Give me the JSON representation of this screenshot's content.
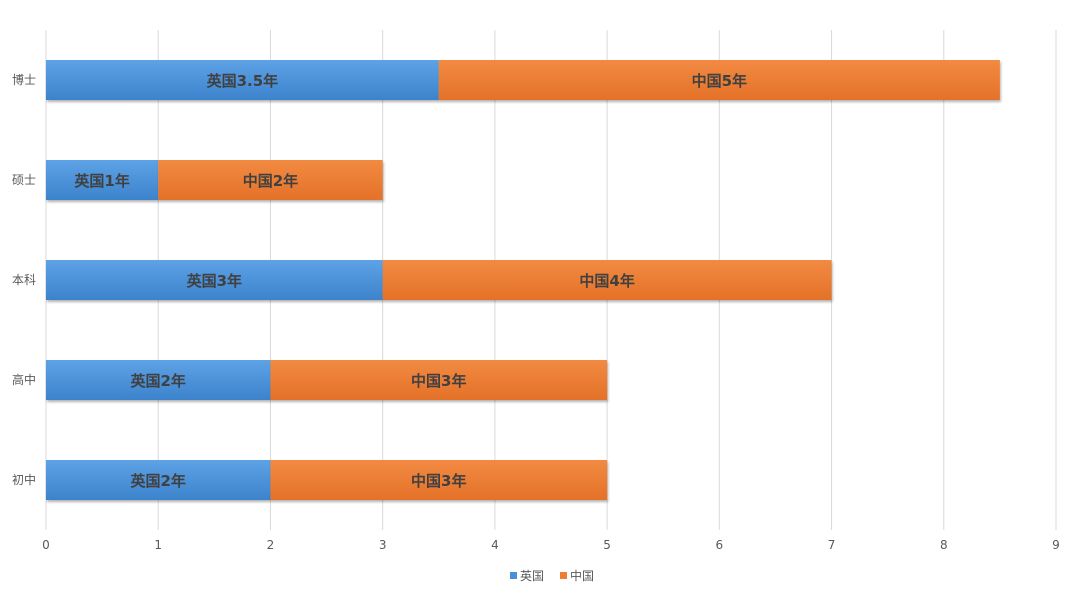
{
  "chart_data": {
    "type": "bar",
    "orientation": "horizontal",
    "stacked": true,
    "categories": [
      "博士",
      "硕士",
      "本科",
      "高中",
      "初中"
    ],
    "series": [
      {
        "name": "英国",
        "color": "#4a90d9",
        "values": [
          3.5,
          1,
          3,
          2,
          2
        ],
        "labels": [
          "英国3.5年",
          "英国1年",
          "英国3年",
          "英国2年",
          "英国2年"
        ]
      },
      {
        "name": "中国",
        "color": "#ed7d31",
        "values": [
          5,
          2,
          4,
          3,
          3
        ],
        "labels": [
          "中国5年",
          "中国2年",
          "中国4年",
          "中国3年",
          "中国3年"
        ]
      }
    ],
    "xlim": [
      0,
      9
    ],
    "x_ticks": [
      "0",
      "1",
      "2",
      "3",
      "4",
      "5",
      "6",
      "7",
      "8",
      "9"
    ],
    "grid": true,
    "legend_position": "bottom",
    "title": "",
    "xlabel": "",
    "ylabel": ""
  }
}
